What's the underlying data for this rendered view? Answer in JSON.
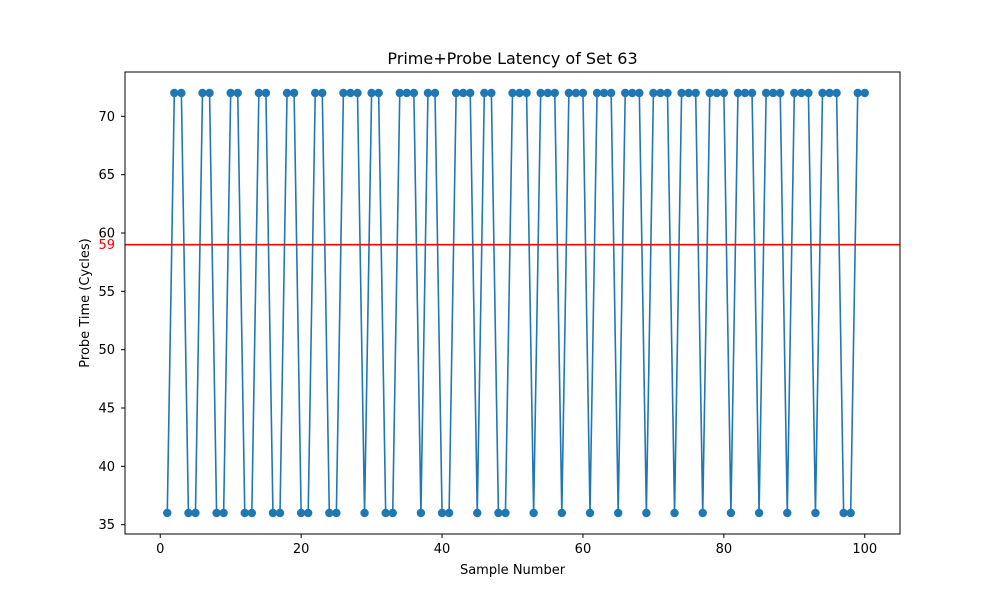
{
  "chart_data": {
    "type": "line",
    "title": "Prime+Probe Latency of Set 63",
    "xlabel": "Sample Number",
    "ylabel": "Probe Time (Cycles)",
    "xlim": [
      -5,
      105
    ],
    "ylim": [
      34.2,
      73.8
    ],
    "xticks": [
      0,
      20,
      40,
      60,
      80,
      100
    ],
    "yticks": [
      35,
      40,
      45,
      50,
      55,
      60,
      65,
      70
    ],
    "grid": false,
    "legend": "none",
    "series": [
      {
        "marker": "circle",
        "color": "#1f77b4",
        "x": [
          1,
          2,
          3,
          4,
          5,
          6,
          7,
          8,
          9,
          10,
          11,
          12,
          13,
          14,
          15,
          16,
          17,
          18,
          19,
          20,
          21,
          22,
          23,
          24,
          25,
          26,
          27,
          28,
          29,
          30,
          31,
          32,
          33,
          34,
          35,
          36,
          37,
          38,
          39,
          40,
          41,
          42,
          43,
          44,
          45,
          46,
          47,
          48,
          49,
          50,
          51,
          52,
          53,
          54,
          55,
          56,
          57,
          58,
          59,
          60,
          61,
          62,
          63,
          64,
          65,
          66,
          67,
          68,
          69,
          70,
          71,
          72,
          73,
          74,
          75,
          76,
          77,
          78,
          79,
          80,
          81,
          82,
          83,
          84,
          85,
          86,
          87,
          88,
          89,
          90,
          91,
          92,
          93,
          94,
          95,
          96,
          97,
          98,
          99,
          100
        ],
        "y": [
          36,
          72,
          72,
          36,
          36,
          72,
          72,
          36,
          36,
          72,
          72,
          36,
          36,
          72,
          72,
          36,
          36,
          72,
          72,
          36,
          36,
          72,
          72,
          36,
          36,
          72,
          72,
          72,
          36,
          72,
          72,
          36,
          36,
          72,
          72,
          72,
          36,
          72,
          72,
          36,
          36,
          72,
          72,
          72,
          36,
          72,
          72,
          36,
          36,
          72,
          72,
          72,
          36,
          72,
          72,
          72,
          36,
          72,
          72,
          72,
          36,
          72,
          72,
          72,
          36,
          72,
          72,
          72,
          36,
          72,
          72,
          72,
          36,
          72,
          72,
          72,
          36,
          72,
          72,
          72,
          36,
          72,
          72,
          72,
          36,
          72,
          72,
          72,
          36,
          72,
          72,
          72,
          36,
          72,
          72,
          72,
          36,
          36,
          72,
          72
        ]
      }
    ],
    "threshold": {
      "value": 59,
      "label": "59",
      "color": "#ff0000"
    }
  }
}
